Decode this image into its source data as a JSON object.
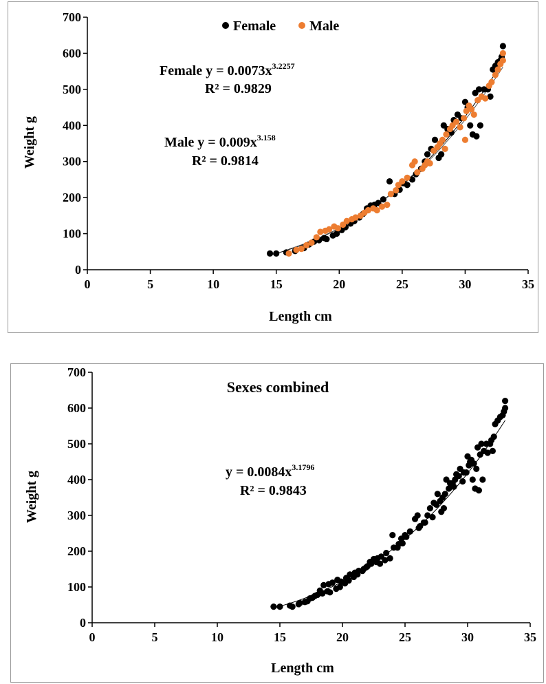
{
  "chart_data": [
    {
      "type": "scatter",
      "xlabel": "Length cm",
      "ylabel": "Weight g",
      "xlim": [
        0,
        35
      ],
      "ylim": [
        0,
        700
      ],
      "xticks": [
        "0",
        "5",
        "10",
        "15",
        "20",
        "25",
        "30",
        "35"
      ],
      "yticks": [
        "0",
        "100",
        "200",
        "300",
        "400",
        "500",
        "600",
        "700"
      ],
      "grid": false,
      "legend": {
        "placement": "top-center",
        "entries": [
          "Female",
          "Male"
        ]
      },
      "series": [
        {
          "name": "Female",
          "color": "#000000",
          "points": [
            [
              14.5,
              45
            ],
            [
              15.0,
              45
            ],
            [
              15.8,
              48
            ],
            [
              16.5,
              52
            ],
            [
              17.2,
              60
            ],
            [
              17.6,
              70
            ],
            [
              18.0,
              78
            ],
            [
              18.4,
              82
            ],
            [
              18.8,
              88
            ],
            [
              19.0,
              85
            ],
            [
              19.5,
              95
            ],
            [
              19.8,
              100
            ],
            [
              20.2,
              110
            ],
            [
              20.5,
              118
            ],
            [
              20.9,
              128
            ],
            [
              21.2,
              135
            ],
            [
              21.6,
              145
            ],
            [
              21.9,
              155
            ],
            [
              22.2,
              170
            ],
            [
              22.5,
              178
            ],
            [
              22.8,
              180
            ],
            [
              23.1,
              185
            ],
            [
              23.5,
              195
            ],
            [
              24.0,
              245
            ],
            [
              24.4,
              210
            ],
            [
              24.8,
              222
            ],
            [
              25.1,
              240
            ],
            [
              25.4,
              235
            ],
            [
              25.8,
              250
            ],
            [
              26.1,
              265
            ],
            [
              26.5,
              280
            ],
            [
              26.8,
              300
            ],
            [
              27.0,
              320
            ],
            [
              27.3,
              335
            ],
            [
              27.6,
              360
            ],
            [
              27.9,
              310
            ],
            [
              28.1,
              320
            ],
            [
              28.3,
              400
            ],
            [
              28.6,
              390
            ],
            [
              28.9,
              380
            ],
            [
              29.1,
              415
            ],
            [
              29.4,
              430
            ],
            [
              29.7,
              420
            ],
            [
              30.0,
              465
            ],
            [
              30.2,
              450
            ],
            [
              30.4,
              400
            ],
            [
              30.6,
              375
            ],
            [
              30.8,
              490
            ],
            [
              30.9,
              370
            ],
            [
              31.1,
              500
            ],
            [
              31.2,
              400
            ],
            [
              31.5,
              500
            ],
            [
              31.8,
              500
            ],
            [
              32.0,
              480
            ],
            [
              32.2,
              555
            ],
            [
              32.4,
              565
            ],
            [
              32.6,
              575
            ],
            [
              32.8,
              580
            ],
            [
              32.9,
              590
            ],
            [
              33.0,
              620
            ]
          ]
        },
        {
          "name": "Male",
          "color": "#ED7D31",
          "points": [
            [
              16.0,
              45
            ],
            [
              16.6,
              55
            ],
            [
              17.0,
              58
            ],
            [
              17.4,
              68
            ],
            [
              17.8,
              75
            ],
            [
              18.2,
              90
            ],
            [
              18.5,
              105
            ],
            [
              18.9,
              108
            ],
            [
              19.2,
              112
            ],
            [
              19.6,
              120
            ],
            [
              19.9,
              115
            ],
            [
              20.3,
              125
            ],
            [
              20.6,
              135
            ],
            [
              21.0,
              140
            ],
            [
              21.3,
              145
            ],
            [
              21.7,
              150
            ],
            [
              22.0,
              158
            ],
            [
              22.3,
              165
            ],
            [
              22.7,
              170
            ],
            [
              23.0,
              165
            ],
            [
              23.4,
              175
            ],
            [
              23.8,
              180
            ],
            [
              24.1,
              210
            ],
            [
              24.5,
              220
            ],
            [
              24.7,
              235
            ],
            [
              25.0,
              245
            ],
            [
              25.4,
              255
            ],
            [
              25.8,
              290
            ],
            [
              26.0,
              300
            ],
            [
              26.2,
              270
            ],
            [
              26.6,
              280
            ],
            [
              27.0,
              300
            ],
            [
              27.2,
              295
            ],
            [
              27.5,
              330
            ],
            [
              27.8,
              340
            ],
            [
              28.0,
              350
            ],
            [
              28.2,
              360
            ],
            [
              28.5,
              375
            ],
            [
              28.8,
              390
            ],
            [
              29.0,
              400
            ],
            [
              29.3,
              410
            ],
            [
              29.6,
              395
            ],
            [
              29.9,
              420
            ],
            [
              30.1,
              440
            ],
            [
              30.3,
              455
            ],
            [
              30.5,
              445
            ],
            [
              30.7,
              430
            ],
            [
              31.0,
              470
            ],
            [
              31.3,
              480
            ],
            [
              31.6,
              475
            ],
            [
              31.9,
              510
            ],
            [
              32.1,
              520
            ],
            [
              32.4,
              540
            ],
            [
              32.6,
              555
            ],
            [
              32.8,
              570
            ],
            [
              33.0,
              580
            ],
            [
              33.0,
              600
            ],
            [
              30.0,
              360
            ],
            [
              28.4,
              335
            ],
            [
              26.8,
              290
            ]
          ]
        }
      ],
      "trendlines": [
        {
          "series": "Female",
          "a": 0.0073,
          "b": 3.2257,
          "x_range": [
            14.5,
            33
          ]
        },
        {
          "series": "Male",
          "a": 0.009,
          "b": 3.158,
          "x_range": [
            16,
            33
          ]
        }
      ],
      "annotations": [
        {
          "lines": [
            "Female y = 0.0073x",
            "3.2257",
            "R² = 0.9829"
          ]
        },
        {
          "lines": [
            "Male y = 0.009x",
            "3.158",
            "R² = 0.9814"
          ]
        }
      ]
    },
    {
      "type": "scatter",
      "title": "Sexes combined",
      "xlabel": "Length cm",
      "ylabel": "Weight g",
      "xlim": [
        0,
        35
      ],
      "ylim": [
        0,
        700
      ],
      "xticks": [
        "0",
        "5",
        "10",
        "15",
        "20",
        "25",
        "30",
        "35"
      ],
      "yticks": [
        "0",
        "100",
        "200",
        "300",
        "400",
        "500",
        "600",
        "700"
      ],
      "grid": false,
      "series": [
        {
          "color": "#000000",
          "points": [
            [
              14.5,
              45
            ],
            [
              15.0,
              45
            ],
            [
              15.8,
              48
            ],
            [
              16.0,
              45
            ],
            [
              16.5,
              52
            ],
            [
              16.6,
              55
            ],
            [
              17.0,
              58
            ],
            [
              17.2,
              60
            ],
            [
              17.4,
              68
            ],
            [
              17.6,
              70
            ],
            [
              17.8,
              75
            ],
            [
              18.0,
              78
            ],
            [
              18.2,
              90
            ],
            [
              18.4,
              82
            ],
            [
              18.5,
              105
            ],
            [
              18.8,
              88
            ],
            [
              18.9,
              108
            ],
            [
              19.0,
              85
            ],
            [
              19.2,
              112
            ],
            [
              19.5,
              95
            ],
            [
              19.6,
              120
            ],
            [
              19.8,
              100
            ],
            [
              19.9,
              115
            ],
            [
              20.2,
              110
            ],
            [
              20.3,
              125
            ],
            [
              20.5,
              118
            ],
            [
              20.6,
              135
            ],
            [
              20.9,
              128
            ],
            [
              21.0,
              140
            ],
            [
              21.2,
              135
            ],
            [
              21.3,
              145
            ],
            [
              21.6,
              145
            ],
            [
              21.7,
              150
            ],
            [
              21.9,
              155
            ],
            [
              22.0,
              158
            ],
            [
              22.2,
              170
            ],
            [
              22.3,
              165
            ],
            [
              22.5,
              178
            ],
            [
              22.7,
              170
            ],
            [
              22.8,
              180
            ],
            [
              23.0,
              165
            ],
            [
              23.1,
              185
            ],
            [
              23.4,
              175
            ],
            [
              23.5,
              195
            ],
            [
              23.8,
              180
            ],
            [
              24.0,
              245
            ],
            [
              24.1,
              210
            ],
            [
              24.4,
              210
            ],
            [
              24.5,
              220
            ],
            [
              24.7,
              235
            ],
            [
              24.8,
              222
            ],
            [
              25.0,
              245
            ],
            [
              25.1,
              240
            ],
            [
              25.4,
              255
            ],
            [
              25.8,
              290
            ],
            [
              26.0,
              300
            ],
            [
              26.1,
              265
            ],
            [
              26.2,
              270
            ],
            [
              26.5,
              280
            ],
            [
              26.6,
              280
            ],
            [
              26.8,
              300
            ],
            [
              27.0,
              320
            ],
            [
              27.2,
              295
            ],
            [
              27.3,
              335
            ],
            [
              27.5,
              330
            ],
            [
              27.6,
              360
            ],
            [
              27.8,
              340
            ],
            [
              27.9,
              310
            ],
            [
              28.0,
              350
            ],
            [
              28.1,
              320
            ],
            [
              28.2,
              360
            ],
            [
              28.3,
              400
            ],
            [
              28.5,
              375
            ],
            [
              28.6,
              390
            ],
            [
              28.8,
              390
            ],
            [
              28.9,
              380
            ],
            [
              29.0,
              400
            ],
            [
              29.1,
              415
            ],
            [
              29.3,
              410
            ],
            [
              29.4,
              430
            ],
            [
              29.6,
              395
            ],
            [
              29.7,
              420
            ],
            [
              29.9,
              420
            ],
            [
              30.0,
              465
            ],
            [
              30.1,
              440
            ],
            [
              30.2,
              450
            ],
            [
              30.3,
              455
            ],
            [
              30.4,
              400
            ],
            [
              30.5,
              445
            ],
            [
              30.6,
              375
            ],
            [
              30.7,
              430
            ],
            [
              30.8,
              490
            ],
            [
              30.9,
              370
            ],
            [
              31.0,
              470
            ],
            [
              31.1,
              500
            ],
            [
              31.2,
              400
            ],
            [
              31.3,
              480
            ],
            [
              31.5,
              500
            ],
            [
              31.6,
              475
            ],
            [
              31.8,
              500
            ],
            [
              31.9,
              510
            ],
            [
              32.0,
              480
            ],
            [
              32.1,
              520
            ],
            [
              32.2,
              555
            ],
            [
              32.4,
              565
            ],
            [
              32.6,
              575
            ],
            [
              32.8,
              580
            ],
            [
              32.9,
              590
            ],
            [
              33.0,
              600
            ],
            [
              33.0,
              620
            ]
          ]
        }
      ],
      "trendlines": [
        {
          "a": 0.0084,
          "b": 3.1796,
          "x_range": [
            14.5,
            33
          ]
        }
      ],
      "annotations": [
        {
          "lines": [
            "y = 0.0084x",
            "3.1796",
            "R² = 0.9843"
          ]
        }
      ]
    }
  ]
}
